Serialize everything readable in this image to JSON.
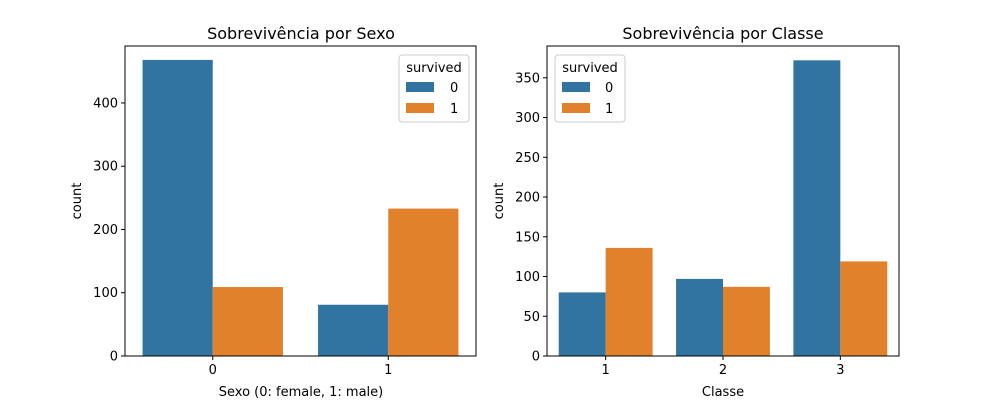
{
  "chart_data": [
    {
      "type": "bar",
      "title": "Sobrevivência por Sexo",
      "xlabel": "Sexo (0: female, 1: male)",
      "ylabel": "count",
      "categories": [
        "0",
        "1"
      ],
      "series": [
        {
          "name": "0",
          "values": [
            468,
            81
          ]
        },
        {
          "name": "1",
          "values": [
            109,
            233
          ]
        }
      ],
      "ylim": [
        0,
        490
      ],
      "yticks": [
        0,
        100,
        200,
        300,
        400
      ],
      "legend": {
        "title": "survived",
        "position": "top-right"
      },
      "colors": [
        "#3274a1",
        "#e1812c"
      ],
      "grid": false
    },
    {
      "type": "bar",
      "title": "Sobrevivência por Classe",
      "xlabel": "Classe",
      "ylabel": "count",
      "categories": [
        "1",
        "2",
        "3"
      ],
      "series": [
        {
          "name": "0",
          "values": [
            80,
            97,
            372
          ]
        },
        {
          "name": "1",
          "values": [
            136,
            87,
            119
          ]
        }
      ],
      "ylim": [
        0,
        390
      ],
      "yticks": [
        0,
        50,
        100,
        150,
        200,
        250,
        300,
        350
      ],
      "legend": {
        "title": "survived",
        "position": "top-left"
      },
      "colors": [
        "#3274a1",
        "#e1812c"
      ],
      "grid": false
    }
  ]
}
